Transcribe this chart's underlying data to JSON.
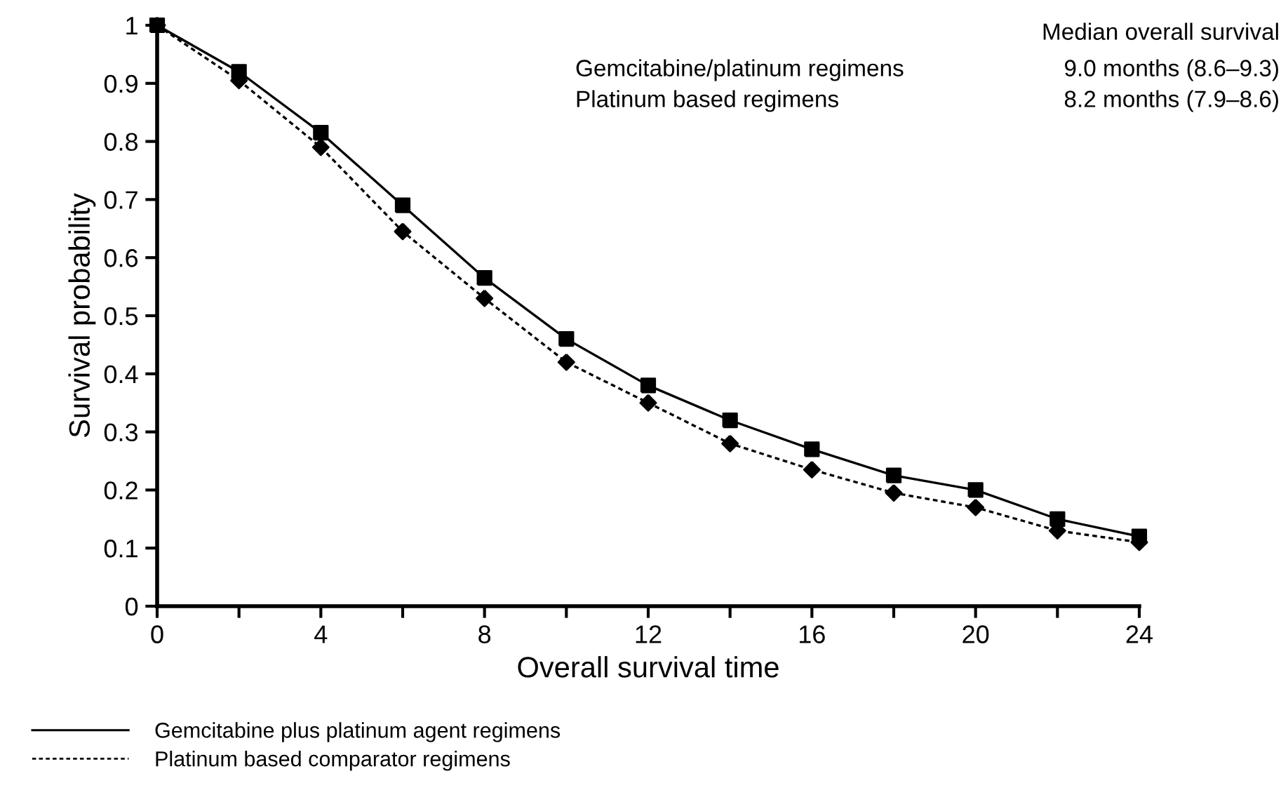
{
  "chart_data": {
    "type": "line",
    "xlabel": "Overall survival time",
    "ylabel": "Survival probability",
    "x": [
      0,
      2,
      4,
      6,
      8,
      10,
      12,
      14,
      16,
      18,
      20,
      22,
      24
    ],
    "series": [
      {
        "name": "Gemcitabine plus platinum agent regimens",
        "color": "#000000",
        "marker": "square",
        "line_style": "solid",
        "values": [
          1,
          0.92,
          0.815,
          0.69,
          0.565,
          0.46,
          0.38,
          0.32,
          0.27,
          0.225,
          0.2,
          0.15,
          0.12
        ]
      },
      {
        "name": "Platinum based comparator regimens",
        "color": "#000000",
        "marker": "diamond",
        "line_style": "dotted",
        "values": [
          1,
          0.905,
          0.79,
          0.645,
          0.53,
          0.42,
          0.35,
          0.28,
          0.235,
          0.195,
          0.17,
          0.13,
          0.11
        ]
      }
    ],
    "xlim": [
      0,
      24
    ],
    "ylim": [
      0,
      1
    ],
    "xticks": [
      0,
      {
        "value": 2,
        "label": null
      },
      4,
      {
        "value": 6,
        "label": null
      },
      8,
      {
        "value": 10,
        "label": null
      },
      12,
      {
        "value": 14,
        "label": null
      },
      16,
      {
        "value": 18,
        "label": null
      },
      20,
      {
        "value": 22,
        "label": null
      },
      24
    ],
    "yticks": [
      0,
      0.1,
      0.2,
      0.3,
      0.4,
      0.5,
      0.6,
      0.7,
      0.8,
      0.9,
      1
    ],
    "grid": false,
    "legend": "bottom left",
    "annotations": [
      "Median overall survival",
      "Gemcitabine/platinum regimens",
      "9.0 months (8.6–9.3)",
      "Platinum based regimens",
      "8.2 months (7.9–8.6)"
    ]
  }
}
